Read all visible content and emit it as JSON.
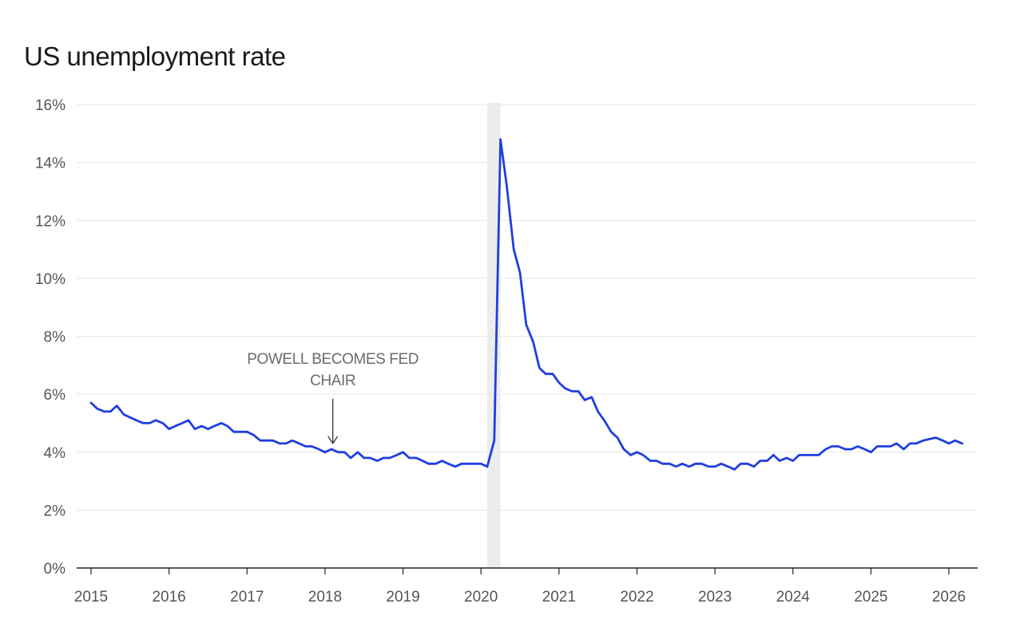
{
  "chart_data": {
    "type": "line",
    "title": "US unemployment rate",
    "ylim": [
      0,
      16
    ],
    "xlim": [
      2015.0,
      2026.3
    ],
    "y_ticks": [
      {
        "value": 0,
        "label": "0%"
      },
      {
        "value": 2,
        "label": "2%"
      },
      {
        "value": 4,
        "label": "4%"
      },
      {
        "value": 6,
        "label": "6%"
      },
      {
        "value": 8,
        "label": "8%"
      },
      {
        "value": 10,
        "label": "10%"
      },
      {
        "value": 12,
        "label": "12%"
      },
      {
        "value": 14,
        "label": "14%"
      },
      {
        "value": 16,
        "label": "16%"
      }
    ],
    "x_ticks": [
      {
        "value": 2015,
        "label": "2015"
      },
      {
        "value": 2016,
        "label": "2016"
      },
      {
        "value": 2017,
        "label": "2017"
      },
      {
        "value": 2018,
        "label": "2018"
      },
      {
        "value": 2019,
        "label": "2019"
      },
      {
        "value": 2020,
        "label": "2020"
      },
      {
        "value": 2021,
        "label": "2021"
      },
      {
        "value": 2022,
        "label": "2022"
      },
      {
        "value": 2023,
        "label": "2023"
      },
      {
        "value": 2024,
        "label": "2024"
      },
      {
        "value": 2025,
        "label": "2025"
      },
      {
        "value": 2026,
        "label": "2026"
      }
    ],
    "grid": true,
    "recession_band": [
      2020.08,
      2020.25
    ],
    "annotation": {
      "lines": [
        "POWELL BECOMES FED",
        "CHAIR"
      ],
      "x": 2018.1,
      "y": 4.3
    },
    "series": [
      {
        "color": "#1f3fe0",
        "points": [
          [
            2015.0,
            5.7
          ],
          [
            2015.08,
            5.5
          ],
          [
            2015.17,
            5.4
          ],
          [
            2015.25,
            5.4
          ],
          [
            2015.33,
            5.6
          ],
          [
            2015.42,
            5.3
          ],
          [
            2015.5,
            5.2
          ],
          [
            2015.58,
            5.1
          ],
          [
            2015.67,
            5.0
          ],
          [
            2015.75,
            5.0
          ],
          [
            2015.83,
            5.1
          ],
          [
            2015.92,
            5.0
          ],
          [
            2016.0,
            4.8
          ],
          [
            2016.08,
            4.9
          ],
          [
            2016.17,
            5.0
          ],
          [
            2016.25,
            5.1
          ],
          [
            2016.33,
            4.8
          ],
          [
            2016.42,
            4.9
          ],
          [
            2016.5,
            4.8
          ],
          [
            2016.58,
            4.9
          ],
          [
            2016.67,
            5.0
          ],
          [
            2016.75,
            4.9
          ],
          [
            2016.83,
            4.7
          ],
          [
            2016.92,
            4.7
          ],
          [
            2017.0,
            4.7
          ],
          [
            2017.08,
            4.6
          ],
          [
            2017.17,
            4.4
          ],
          [
            2017.25,
            4.4
          ],
          [
            2017.33,
            4.4
          ],
          [
            2017.42,
            4.3
          ],
          [
            2017.5,
            4.3
          ],
          [
            2017.58,
            4.4
          ],
          [
            2017.67,
            4.3
          ],
          [
            2017.75,
            4.2
          ],
          [
            2017.83,
            4.2
          ],
          [
            2017.92,
            4.1
          ],
          [
            2018.0,
            4.0
          ],
          [
            2018.08,
            4.1
          ],
          [
            2018.17,
            4.0
          ],
          [
            2018.25,
            4.0
          ],
          [
            2018.33,
            3.8
          ],
          [
            2018.42,
            4.0
          ],
          [
            2018.5,
            3.8
          ],
          [
            2018.58,
            3.8
          ],
          [
            2018.67,
            3.7
          ],
          [
            2018.75,
            3.8
          ],
          [
            2018.83,
            3.8
          ],
          [
            2018.92,
            3.9
          ],
          [
            2019.0,
            4.0
          ],
          [
            2019.08,
            3.8
          ],
          [
            2019.17,
            3.8
          ],
          [
            2019.25,
            3.7
          ],
          [
            2019.33,
            3.6
          ],
          [
            2019.42,
            3.6
          ],
          [
            2019.5,
            3.7
          ],
          [
            2019.58,
            3.6
          ],
          [
            2019.67,
            3.5
          ],
          [
            2019.75,
            3.6
          ],
          [
            2019.83,
            3.6
          ],
          [
            2019.92,
            3.6
          ],
          [
            2020.0,
            3.6
          ],
          [
            2020.08,
            3.5
          ],
          [
            2020.17,
            4.4
          ],
          [
            2020.25,
            14.8
          ],
          [
            2020.33,
            13.2
          ],
          [
            2020.42,
            11.0
          ],
          [
            2020.5,
            10.2
          ],
          [
            2020.58,
            8.4
          ],
          [
            2020.67,
            7.8
          ],
          [
            2020.75,
            6.9
          ],
          [
            2020.83,
            6.7
          ],
          [
            2020.92,
            6.7
          ],
          [
            2021.0,
            6.4
          ],
          [
            2021.08,
            6.2
          ],
          [
            2021.17,
            6.1
          ],
          [
            2021.25,
            6.1
          ],
          [
            2021.33,
            5.8
          ],
          [
            2021.42,
            5.9
          ],
          [
            2021.5,
            5.4
          ],
          [
            2021.58,
            5.1
          ],
          [
            2021.67,
            4.7
          ],
          [
            2021.75,
            4.5
          ],
          [
            2021.83,
            4.1
          ],
          [
            2021.92,
            3.9
          ],
          [
            2022.0,
            4.0
          ],
          [
            2022.08,
            3.9
          ],
          [
            2022.17,
            3.7
          ],
          [
            2022.25,
            3.7
          ],
          [
            2022.33,
            3.6
          ],
          [
            2022.42,
            3.6
          ],
          [
            2022.5,
            3.5
          ],
          [
            2022.58,
            3.6
          ],
          [
            2022.67,
            3.5
          ],
          [
            2022.75,
            3.6
          ],
          [
            2022.83,
            3.6
          ],
          [
            2022.92,
            3.5
          ],
          [
            2023.0,
            3.5
          ],
          [
            2023.08,
            3.6
          ],
          [
            2023.17,
            3.5
          ],
          [
            2023.25,
            3.4
          ],
          [
            2023.33,
            3.6
          ],
          [
            2023.42,
            3.6
          ],
          [
            2023.5,
            3.5
          ],
          [
            2023.58,
            3.7
          ],
          [
            2023.67,
            3.7
          ],
          [
            2023.75,
            3.9
          ],
          [
            2023.83,
            3.7
          ],
          [
            2023.92,
            3.8
          ],
          [
            2024.0,
            3.7
          ],
          [
            2024.08,
            3.9
          ],
          [
            2024.17,
            3.9
          ],
          [
            2024.25,
            3.9
          ],
          [
            2024.33,
            3.9
          ],
          [
            2024.42,
            4.1
          ],
          [
            2024.5,
            4.2
          ],
          [
            2024.58,
            4.2
          ],
          [
            2024.67,
            4.1
          ],
          [
            2024.75,
            4.1
          ],
          [
            2024.83,
            4.2
          ],
          [
            2024.92,
            4.1
          ],
          [
            2025.0,
            4.0
          ],
          [
            2025.08,
            4.2
          ],
          [
            2025.17,
            4.2
          ],
          [
            2025.25,
            4.2
          ],
          [
            2025.33,
            4.3
          ],
          [
            2025.42,
            4.1
          ],
          [
            2025.5,
            4.3
          ],
          [
            2025.58,
            4.3
          ],
          [
            2025.67,
            4.4
          ],
          [
            2025.75,
            4.45
          ],
          [
            2025.83,
            4.5
          ],
          [
            2025.92,
            4.4
          ],
          [
            2026.0,
            4.3
          ],
          [
            2026.08,
            4.4
          ],
          [
            2026.17,
            4.3
          ]
        ]
      }
    ]
  }
}
